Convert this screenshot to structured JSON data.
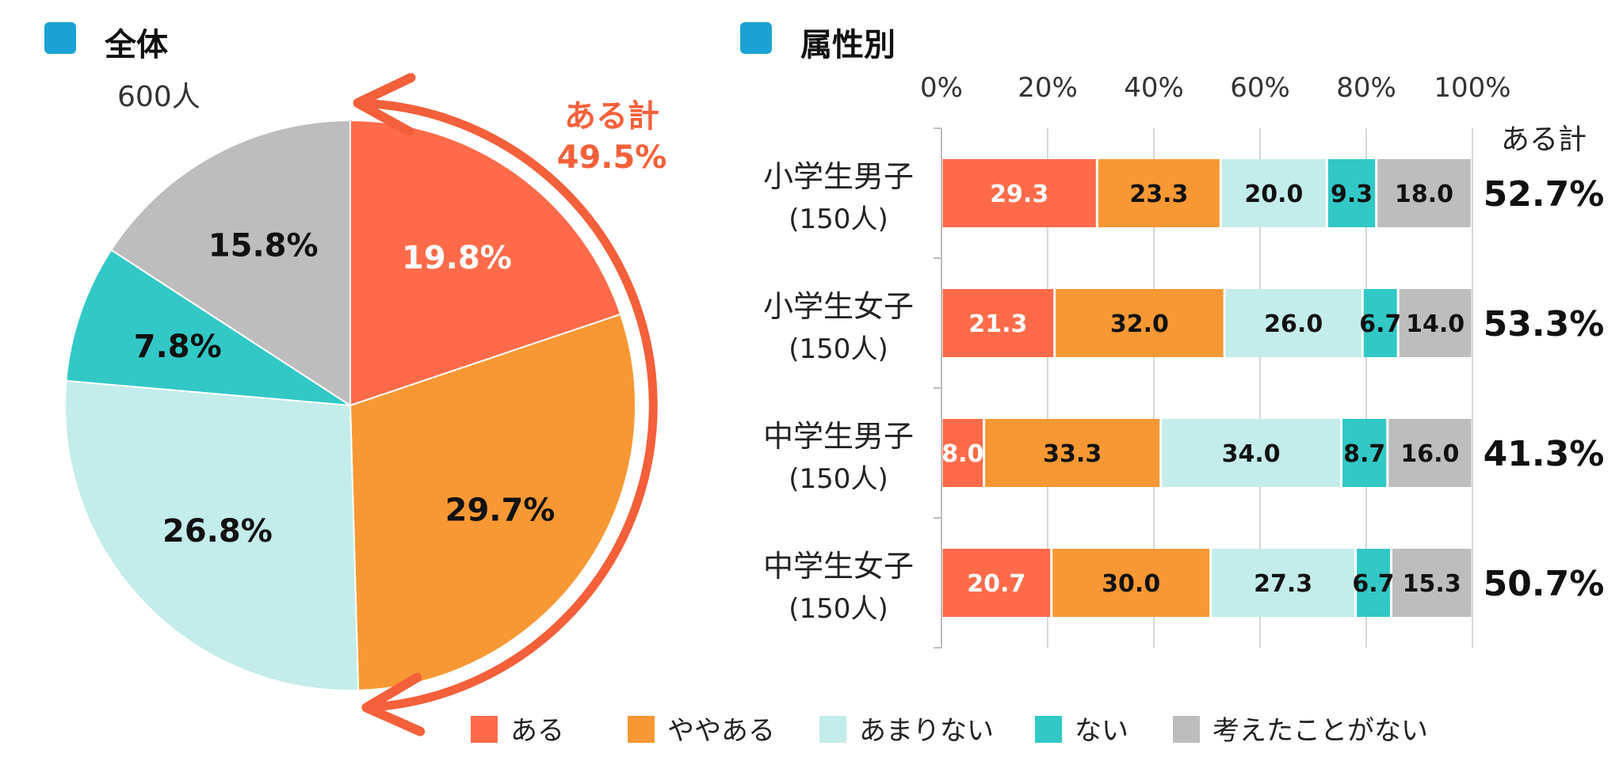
{
  "colors": {
    "aru": "#FF6B4A",
    "yayaaru": "#F89834",
    "amarinai": "#C3ECEA",
    "nai": "#32C8C6",
    "kangaeta": "#BDBDBD",
    "header_marker": "#1AA2D3",
    "accent": "#F4603A",
    "grid": "#D6D6D6"
  },
  "sections": {
    "left_title": "全体",
    "right_title": "属性別"
  },
  "chart_data": [
    {
      "type": "pie",
      "title": "全体",
      "subtitle": "600人",
      "labels": [
        "ある",
        "ややある",
        "あまりない",
        "ない",
        "考えたことがない"
      ],
      "values": [
        19.8,
        29.7,
        26.8,
        7.8,
        15.8
      ],
      "value_labels": [
        "19.8%",
        "29.7%",
        "26.8%",
        "7.8%",
        "15.8%"
      ],
      "start": "12 o'clock, clockwise",
      "annotation": {
        "label": "ある計",
        "value": "49.5%"
      }
    },
    {
      "type": "bar",
      "orientation": "horizontal",
      "stacked": "100%",
      "title": "属性別",
      "categories": [
        {
          "name": "小学生男子",
          "n": "(150人)"
        },
        {
          "name": "小学生女子",
          "n": "(150人)"
        },
        {
          "name": "中学生男子",
          "n": "(150人)"
        },
        {
          "name": "中学生女子",
          "n": "(150人)"
        }
      ],
      "x_ticks": [
        "0%",
        "20%",
        "40%",
        "60%",
        "80%",
        "100%"
      ],
      "xlim": [
        0,
        100
      ],
      "series": [
        {
          "name": "ある",
          "values": [
            29.3,
            21.3,
            8.0,
            20.7
          ],
          "labels": [
            "29.3",
            "21.3",
            "8.0",
            "20.7"
          ]
        },
        {
          "name": "ややある",
          "values": [
            23.3,
            32.0,
            33.3,
            30.0
          ],
          "labels": [
            "23.3",
            "32.0",
            "33.3",
            "30.0"
          ]
        },
        {
          "name": "あまりない",
          "values": [
            20.0,
            26.0,
            34.0,
            27.3
          ],
          "labels": [
            "20.0",
            "26.0",
            "34.0",
            "27.3"
          ]
        },
        {
          "name": "ない",
          "values": [
            9.3,
            6.7,
            8.7,
            6.7
          ],
          "labels": [
            "9.3",
            "6.7",
            "8.7",
            "6.7"
          ]
        },
        {
          "name": "考えたことがない",
          "values": [
            18.0,
            14.0,
            16.0,
            15.3
          ],
          "labels": [
            "18.0",
            "14.0",
            "16.0",
            "15.3"
          ]
        }
      ],
      "total_header": "ある計",
      "totals": [
        "52.7%",
        "53.3%",
        "41.3%",
        "50.7%"
      ],
      "grid": true,
      "legend": "bottom"
    }
  ],
  "legend": [
    {
      "name": "ある",
      "color_key": "aru"
    },
    {
      "name": "ややある",
      "color_key": "yayaaru"
    },
    {
      "name": "あまりない",
      "color_key": "amarinai"
    },
    {
      "name": "ない",
      "color_key": "nai"
    },
    {
      "name": "考えたことがない",
      "color_key": "kangaeta"
    }
  ]
}
